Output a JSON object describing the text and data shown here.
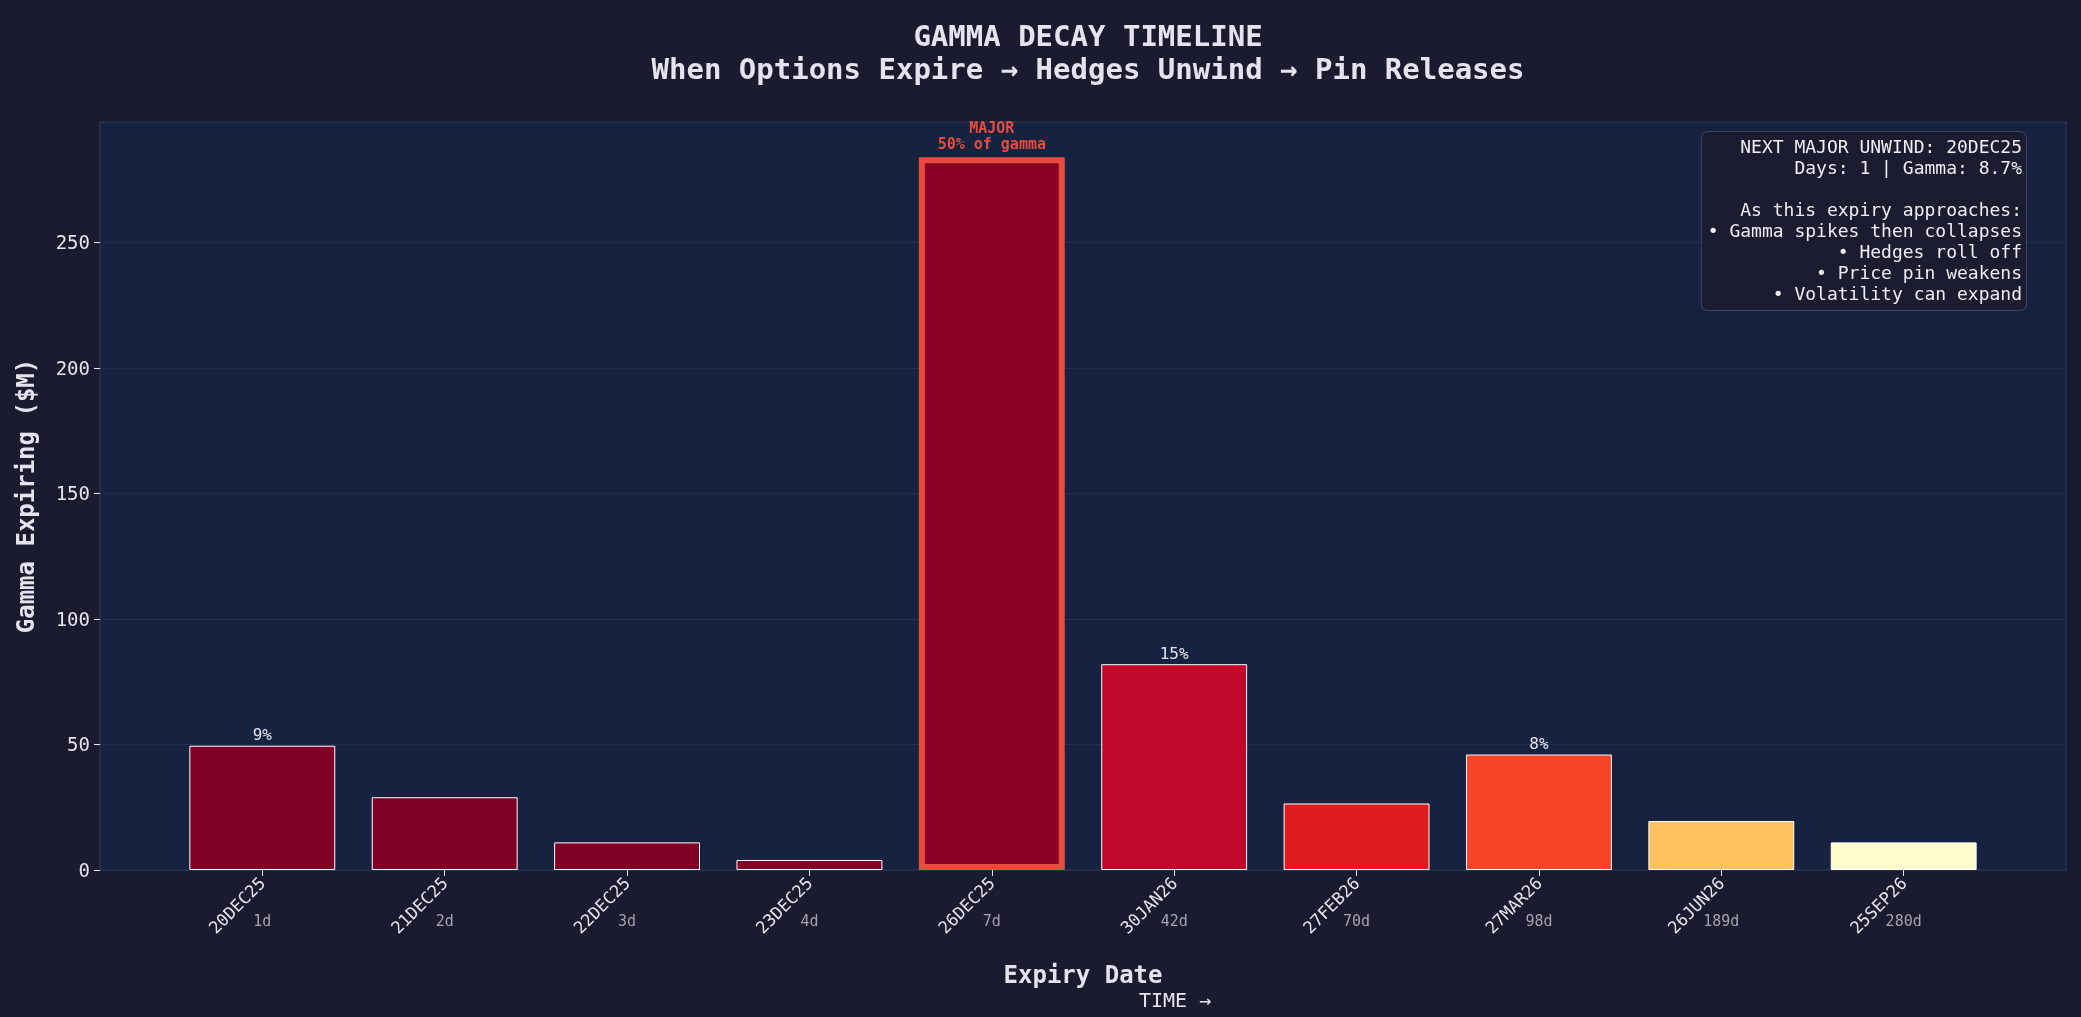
{
  "chart_data": {
    "type": "bar",
    "title": "GAMMA DECAY TIMELINE",
    "subtitle": "When Options Expire → Hedges Unwind → Pin Releases",
    "xlabel": "Expiry Date",
    "ylabel": "Gamma Expiring ($M)",
    "categories": [
      "20DEC25",
      "21DEC25",
      "22DEC25",
      "23DEC25",
      "26DEC25",
      "30JAN26",
      "27FEB26",
      "27MAR26",
      "26JUN26",
      "25SEP26"
    ],
    "values": [
      49.5,
      29,
      11,
      4,
      284,
      82,
      26.5,
      46,
      19.5,
      11
    ],
    "colors": [
      "#800026",
      "#800026",
      "#800026",
      "#800026",
      "#8a0027",
      "#c1072a",
      "#e01b1f",
      "#f64428",
      "#fec15e",
      "#fffbcc"
    ],
    "ylim": [
      0,
      298
    ],
    "yticks": [
      0,
      50,
      100,
      150,
      200,
      250
    ],
    "grid": "y",
    "annotations": [
      "NEXT MAJOR UNWIND: 20DEC25\nDays: 1 | Gamma: 8.7%\n\nAs this expiry approaches:\n• Gamma spikes then collapses\n• Hedges roll off\n• Price pin weakens\n• Volatility can expand",
      "TIME →",
      "1d",
      "2d",
      "3d",
      "4d",
      "7d",
      "42d",
      "70d",
      "98d",
      "189d",
      "280d",
      {
        "text": "MAJOR\n50% of gamma",
        "x": "26DEC25",
        "y": 284
      },
      {
        "text": "9%",
        "x": "20DEC25",
        "y": 49.5
      },
      {
        "text": "15%",
        "x": "30JAN26",
        "y": 82
      },
      {
        "text": "8%",
        "x": "27MAR26",
        "y": 46
      }
    ]
  }
}
